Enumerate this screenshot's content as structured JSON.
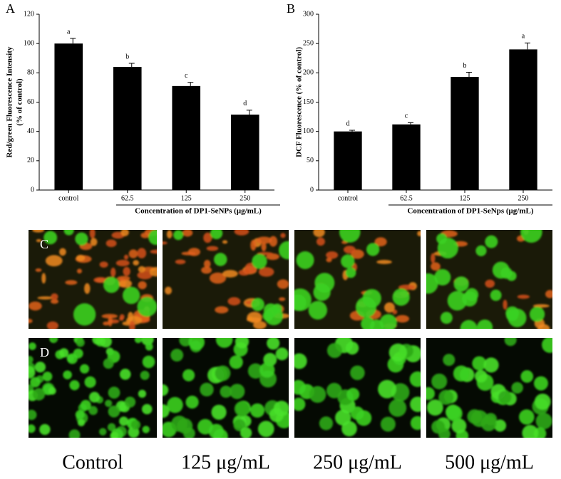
{
  "chart_data": [
    {
      "type": "bar",
      "panel": "A",
      "ylabel": [
        "Red/green Fluorescence Intensity",
        "(% of control)"
      ],
      "xlabel": "Concentration of DP1-SeNPs (μg/mL)",
      "categories": [
        "control",
        "62.5",
        "125",
        "250"
      ],
      "values": [
        100,
        84,
        71,
        51.5
      ],
      "errors": [
        3.5,
        2.5,
        2.5,
        3
      ],
      "letters": [
        "a",
        "b",
        "c",
        "d"
      ],
      "color": "#000000",
      "ylim": [
        0,
        120
      ],
      "yticks": [
        0,
        20,
        40,
        60,
        80,
        100,
        120
      ]
    },
    {
      "type": "bar",
      "panel": "B",
      "ylabel": [
        "DCF Fluorescence (% of control)"
      ],
      "xlabel": "Concentration of DP1-SeNps (μg/mL)",
      "categories": [
        "control",
        "62.5",
        "125",
        "250"
      ],
      "values": [
        100,
        112,
        193,
        240
      ],
      "errors": [
        2,
        3,
        8,
        11
      ],
      "letters": [
        "d",
        "c",
        "b",
        "a"
      ],
      "color": "#000000",
      "ylim": [
        0,
        300
      ],
      "yticks": [
        0,
        50,
        100,
        150,
        200,
        250,
        300
      ]
    }
  ],
  "image_rows": [
    "C",
    "D"
  ],
  "image_labels": [
    "Control",
    "125 μg/mL",
    "250 μg/mL",
    "500 μg/mL"
  ]
}
